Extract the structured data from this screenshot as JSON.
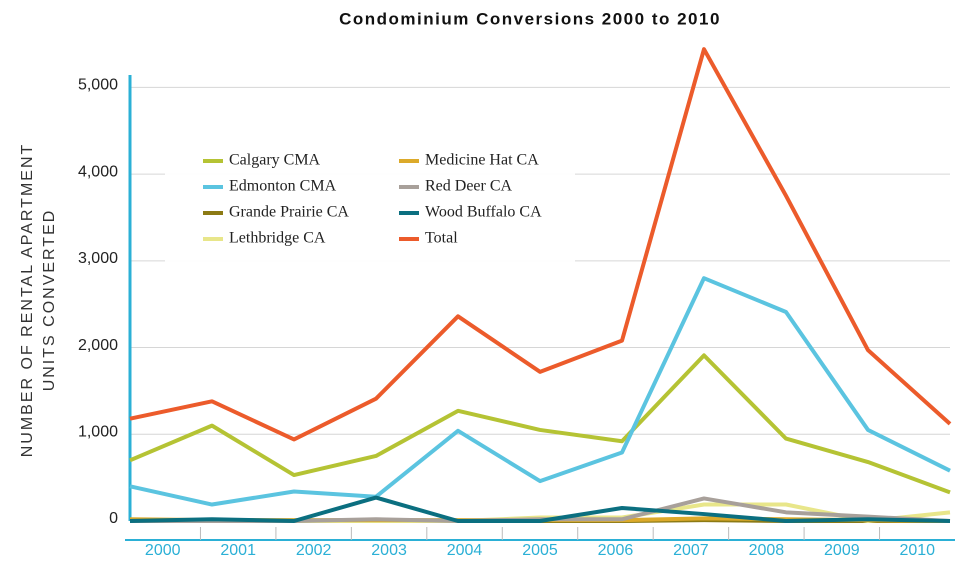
{
  "chart_data": {
    "type": "line",
    "title": "Condominium Conversions 2000 to 2010",
    "y_label": [
      "NUMBER OF RENTAL APARTMENT",
      "UNITS CONVERTED"
    ],
    "categories": [
      "2000",
      "2001",
      "2002",
      "2003",
      "2004",
      "2005",
      "2006",
      "2007",
      "2008",
      "2009",
      "2010"
    ],
    "series": [
      {
        "name": "Calgary CMA",
        "color": "#b5c334",
        "values": [
          700,
          1100,
          530,
          750,
          1270,
          1050,
          920,
          1910,
          950,
          680,
          330
        ]
      },
      {
        "name": "Edmonton CMA",
        "color": "#5bc4e0",
        "values": [
          400,
          190,
          340,
          280,
          1040,
          460,
          790,
          2800,
          2410,
          1050,
          580
        ]
      },
      {
        "name": "Grande Prairie CA",
        "color": "#8c7a14",
        "values": [
          10,
          0,
          0,
          0,
          0,
          0,
          0,
          10,
          0,
          0,
          0
        ]
      },
      {
        "name": "Lethbridge CA",
        "color": "#e8e68a",
        "values": [
          0,
          0,
          0,
          0,
          0,
          40,
          40,
          190,
          190,
          0,
          100
        ]
      },
      {
        "name": "Medicine Hat CA",
        "color": "#dcaa2a",
        "values": [
          20,
          10,
          10,
          10,
          10,
          10,
          10,
          30,
          20,
          10,
          0
        ]
      },
      {
        "name": "Red Deer CA",
        "color": "#a8a09a",
        "values": [
          0,
          0,
          0,
          20,
          0,
          20,
          20,
          260,
          100,
          50,
          0
        ]
      },
      {
        "name": "Wood Buffalo CA",
        "color": "#0b6f80",
        "values": [
          0,
          20,
          0,
          270,
          0,
          0,
          150,
          80,
          0,
          20,
          0
        ]
      },
      {
        "name": "Total",
        "color": "#ec5b2b",
        "values": [
          1180,
          1380,
          940,
          1410,
          2360,
          1720,
          2080,
          5440,
          3750,
          1970,
          1120
        ]
      }
    ],
    "ylim": [
      0,
      5500
    ],
    "yticks": [
      0,
      {
        "value": 1000,
        "label": "1,000"
      },
      {
        "value": 2000,
        "label": "2,000"
      },
      {
        "value": 3000,
        "label": "3,000"
      },
      {
        "value": 4000,
        "label": "4,000"
      },
      {
        "value": 5000,
        "label": "5,000"
      }
    ],
    "grid": true
  }
}
